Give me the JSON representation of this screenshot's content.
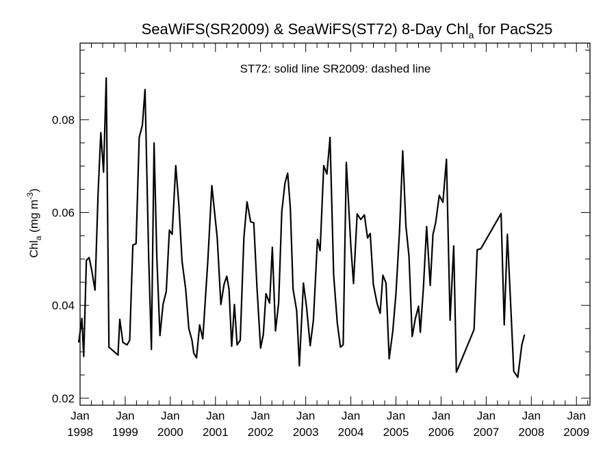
{
  "chart_data": {
    "type": "line",
    "title_main": "SeaWiFS(SR2009) & SeaWiFS(ST72) 8-Day Chl",
    "title_sub": "a",
    "title_tail": " for PacS25",
    "annotation": "ST72: solid line   SR2009: dashed line",
    "ylabel_main": "Chl",
    "ylabel_sub": "a",
    "ylabel_unit": " (mg m",
    "ylabel_sup": "-3",
    "ylabel_close": ")",
    "ylim": [
      0.0185,
      0.0965
    ],
    "xlim": [
      1998.0,
      2009.3
    ],
    "yticks": [
      {
        "value": 0.02,
        "label": "0.02"
      },
      {
        "value": 0.04,
        "label": "0.04"
      },
      {
        "value": 0.06,
        "label": "0.06"
      },
      {
        "value": 0.08,
        "label": "0.08"
      }
    ],
    "xticks": [
      {
        "value": 1998.0,
        "month": "Jan",
        "year": "1998"
      },
      {
        "value": 1999.0,
        "month": "Jan",
        "year": "1999"
      },
      {
        "value": 2000.0,
        "month": "Jan",
        "year": "2000"
      },
      {
        "value": 2001.0,
        "month": "Jan",
        "year": "2001"
      },
      {
        "value": 2002.0,
        "month": "Jan",
        "year": "2002"
      },
      {
        "value": 2003.0,
        "month": "Jan",
        "year": "2003"
      },
      {
        "value": 2004.0,
        "month": "Jan",
        "year": "2004"
      },
      {
        "value": 2005.0,
        "month": "Jan",
        "year": "2005"
      },
      {
        "value": 2006.0,
        "month": "Jan",
        "year": "2006"
      },
      {
        "value": 2007.0,
        "month": "Jan",
        "year": "2007"
      },
      {
        "value": 2008.0,
        "month": "Jan",
        "year": "2008"
      },
      {
        "value": 2009.0,
        "month": "Jan",
        "year": "2009"
      }
    ],
    "series": [
      {
        "style": "solid",
        "color": "#000000",
        "points": [
          [
            1997.97,
            0.032
          ],
          [
            1998.04,
            0.0372
          ],
          [
            1998.08,
            0.029
          ],
          [
            1998.14,
            0.0497
          ],
          [
            1998.2,
            0.0503
          ],
          [
            1998.26,
            0.0475
          ],
          [
            1998.33,
            0.0433
          ],
          [
            1998.4,
            0.0645
          ],
          [
            1998.46,
            0.0772
          ],
          [
            1998.52,
            0.0687
          ],
          [
            1998.58,
            0.089
          ],
          [
            1998.64,
            0.031
          ],
          [
            1998.84,
            0.0293
          ],
          [
            1998.88,
            0.037
          ],
          [
            1998.95,
            0.032
          ],
          [
            1999.04,
            0.0315
          ],
          [
            1999.1,
            0.0325
          ],
          [
            1999.17,
            0.053
          ],
          [
            1999.24,
            0.0533
          ],
          [
            1999.31,
            0.0762
          ],
          [
            1999.38,
            0.0788
          ],
          [
            1999.44,
            0.0865
          ],
          [
            1999.52,
            0.0505
          ],
          [
            1999.58,
            0.0305
          ],
          [
            1999.64,
            0.075
          ],
          [
            1999.7,
            0.0505
          ],
          [
            1999.77,
            0.0335
          ],
          [
            1999.84,
            0.0403
          ],
          [
            1999.91,
            0.043
          ],
          [
            1999.98,
            0.0562
          ],
          [
            2000.04,
            0.0553
          ],
          [
            2000.12,
            0.0701
          ],
          [
            2000.19,
            0.0615
          ],
          [
            2000.26,
            0.0495
          ],
          [
            2000.34,
            0.0435
          ],
          [
            2000.41,
            0.035
          ],
          [
            2000.48,
            0.0325
          ],
          [
            2000.52,
            0.0297
          ],
          [
            2000.58,
            0.0287
          ],
          [
            2000.65,
            0.0358
          ],
          [
            2000.72,
            0.0328
          ],
          [
            2000.83,
            0.0495
          ],
          [
            2000.92,
            0.0658
          ],
          [
            2001.04,
            0.0545
          ],
          [
            2001.12,
            0.0402
          ],
          [
            2001.19,
            0.0445
          ],
          [
            2001.25,
            0.0463
          ],
          [
            2001.3,
            0.0435
          ],
          [
            2001.36,
            0.0312
          ],
          [
            2001.42,
            0.0402
          ],
          [
            2001.48,
            0.0315
          ],
          [
            2001.55,
            0.0325
          ],
          [
            2001.63,
            0.0545
          ],
          [
            2001.7,
            0.0623
          ],
          [
            2001.78,
            0.058
          ],
          [
            2001.85,
            0.0578
          ],
          [
            2001.92,
            0.044
          ],
          [
            2002.0,
            0.0308
          ],
          [
            2002.06,
            0.0337
          ],
          [
            2002.12,
            0.0425
          ],
          [
            2002.2,
            0.0405
          ],
          [
            2002.26,
            0.0525
          ],
          [
            2002.33,
            0.0345
          ],
          [
            2002.4,
            0.0405
          ],
          [
            2002.47,
            0.0602
          ],
          [
            2002.54,
            0.0663
          ],
          [
            2002.6,
            0.0685
          ],
          [
            2002.66,
            0.061
          ],
          [
            2002.72,
            0.0435
          ],
          [
            2002.8,
            0.0388
          ],
          [
            2002.86,
            0.027
          ],
          [
            2002.95,
            0.0448
          ],
          [
            2003.02,
            0.0395
          ],
          [
            2003.1,
            0.0313
          ],
          [
            2003.17,
            0.0368
          ],
          [
            2003.26,
            0.0542
          ],
          [
            2003.32,
            0.0518
          ],
          [
            2003.4,
            0.0701
          ],
          [
            2003.47,
            0.0683
          ],
          [
            2003.54,
            0.0762
          ],
          [
            2003.62,
            0.0465
          ],
          [
            2003.7,
            0.0362
          ],
          [
            2003.77,
            0.031
          ],
          [
            2003.83,
            0.0315
          ],
          [
            2003.9,
            0.0708
          ],
          [
            2004.0,
            0.0528
          ],
          [
            2004.06,
            0.0447
          ],
          [
            2004.14,
            0.0597
          ],
          [
            2004.22,
            0.0585
          ],
          [
            2004.3,
            0.0595
          ],
          [
            2004.37,
            0.0545
          ],
          [
            2004.43,
            0.0555
          ],
          [
            2004.5,
            0.0445
          ],
          [
            2004.58,
            0.0405
          ],
          [
            2004.65,
            0.0383
          ],
          [
            2004.71,
            0.0465
          ],
          [
            2004.78,
            0.0448
          ],
          [
            2004.85,
            0.0285
          ],
          [
            2004.93,
            0.0345
          ],
          [
            2005.0,
            0.0425
          ],
          [
            2005.08,
            0.0562
          ],
          [
            2005.15,
            0.0733
          ],
          [
            2005.22,
            0.0572
          ],
          [
            2005.29,
            0.0505
          ],
          [
            2005.36,
            0.0333
          ],
          [
            2005.43,
            0.0372
          ],
          [
            2005.5,
            0.0398
          ],
          [
            2005.54,
            0.0342
          ],
          [
            2005.61,
            0.044
          ],
          [
            2005.68,
            0.057
          ],
          [
            2005.76,
            0.0443
          ],
          [
            2005.82,
            0.0553
          ],
          [
            2005.88,
            0.0578
          ],
          [
            2005.96,
            0.0637
          ],
          [
            2006.04,
            0.0622
          ],
          [
            2006.12,
            0.0715
          ],
          [
            2006.2,
            0.0368
          ],
          [
            2006.28,
            0.0528
          ],
          [
            2006.34,
            0.0256
          ],
          [
            2006.73,
            0.0348
          ],
          [
            2006.8,
            0.052
          ],
          [
            2006.88,
            0.0522
          ],
          [
            2007.33,
            0.0598
          ],
          [
            2007.4,
            0.0358
          ],
          [
            2007.47,
            0.0553
          ],
          [
            2007.55,
            0.0387
          ],
          [
            2007.61,
            0.0258
          ],
          [
            2007.7,
            0.0245
          ],
          [
            2007.79,
            0.0315
          ],
          [
            2007.85,
            0.0337
          ]
        ]
      }
    ]
  }
}
